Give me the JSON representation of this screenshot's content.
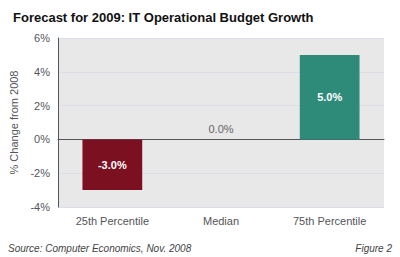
{
  "chart_data": {
    "type": "bar",
    "title": "Forecast for 2009: IT Operational Budget Growth",
    "categories": [
      "25th Percentile",
      "Median",
      "75th Percentile"
    ],
    "values": [
      -3.0,
      0.0,
      5.0
    ],
    "value_labels": [
      "-3.0%",
      "0.0%",
      "5.0%"
    ],
    "data_labels": true,
    "colors": [
      "#7B1020",
      "#cccccc",
      "#2E8B7A"
    ],
    "ylabel": "% Change from 2008",
    "ylim": [
      -4,
      6
    ],
    "yticks": [
      {
        "value": -4,
        "label": "-4%"
      },
      {
        "value": -2,
        "label": "-2%"
      },
      {
        "value": 0,
        "label": "0%"
      },
      {
        "value": 2,
        "label": "2%"
      },
      {
        "value": 4,
        "label": "4%"
      },
      {
        "value": 6,
        "label": "6%"
      }
    ],
    "grid": true,
    "annotations": [
      "Source: Computer Economics, Nov. 2008",
      "Figure 2"
    ]
  }
}
